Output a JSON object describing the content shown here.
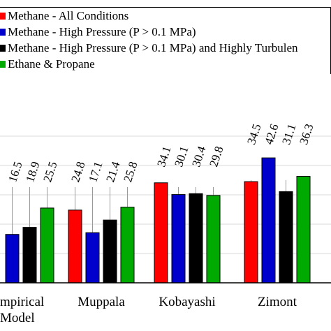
{
  "chart_data": {
    "type": "bar",
    "categories": [
      "Empirical Model",
      "Muppala",
      "Kobayashi",
      "Zimont"
    ],
    "category_labels": [
      [
        "mpirical",
        "Model"
      ],
      [
        "Muppala"
      ],
      [
        "Kobayashi"
      ],
      [
        "Zimont"
      ]
    ],
    "series": [
      {
        "name": "Methane - All Conditions",
        "color": "#ff0000",
        "values": [
          null,
          24.8,
          34.1,
          34.5
        ],
        "labels": [
          "",
          "24.8",
          "34.1",
          "34.5"
        ]
      },
      {
        "name": "Methane - High Pressure (P > 0.1 MPa)",
        "color": "#0000cc",
        "values": [
          16.5,
          17.1,
          30.1,
          42.6
        ],
        "labels": [
          "16.5",
          "17.1",
          "30.1",
          "42.6"
        ]
      },
      {
        "name": "Methane - High Pressure (P > 0.1 MPa) and Highly Turbulen",
        "color": "#000000",
        "values": [
          18.9,
          21.4,
          30.4,
          31.1
        ],
        "labels": [
          "18.9",
          "21.4",
          "30.4",
          "31.1"
        ]
      },
      {
        "name": "Ethane & Propane",
        "color": "#00aa00",
        "values": [
          25.5,
          25.8,
          29.8,
          36.3
        ],
        "labels": [
          "25.5",
          "25.8",
          "29.8",
          "36.3"
        ]
      }
    ],
    "ylim": [
      0,
      50
    ],
    "grid": true,
    "legend": "top-left"
  }
}
